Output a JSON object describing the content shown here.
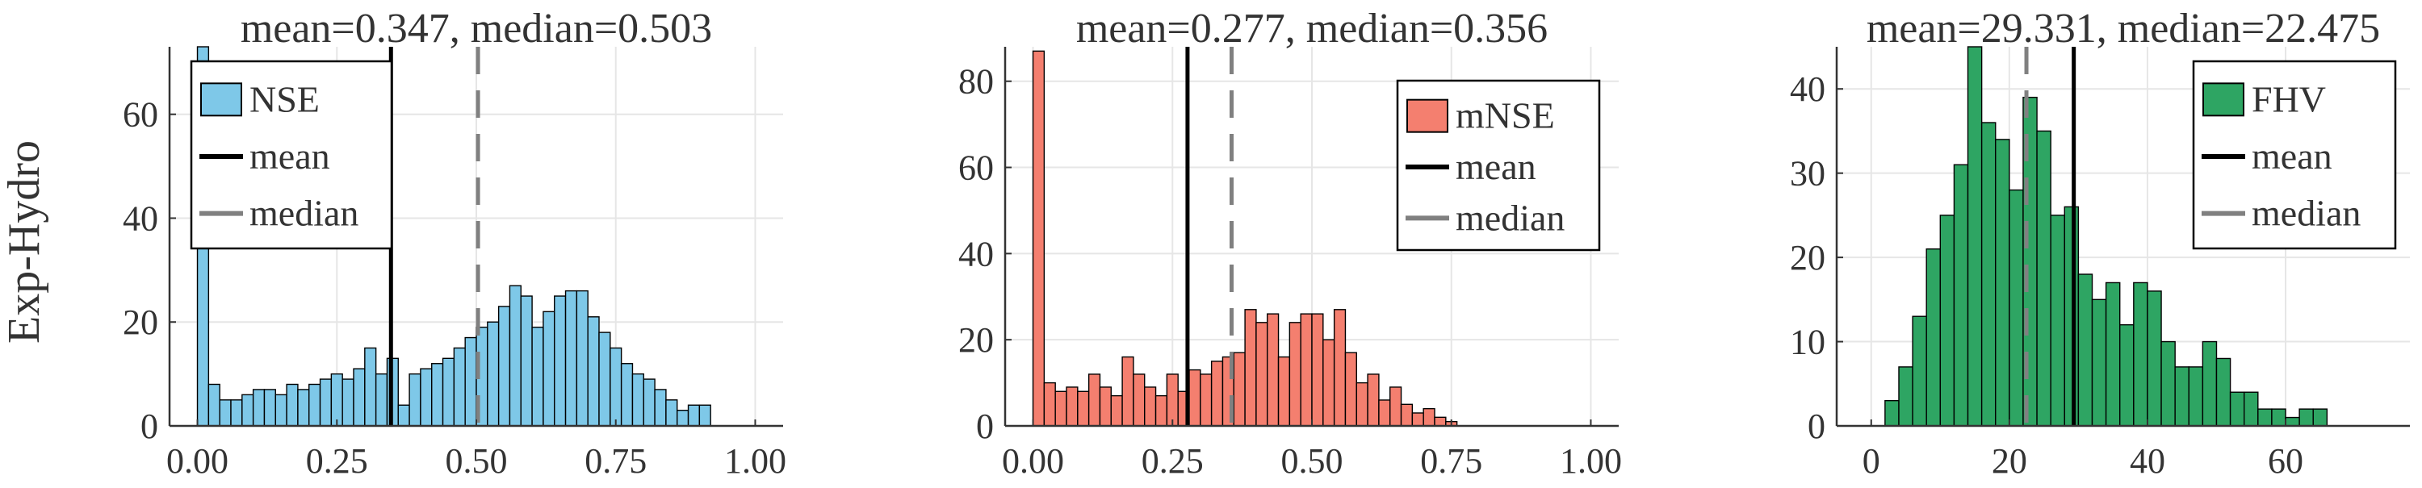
{
  "row_label": "Exp-Hydro",
  "colors": {
    "mean_line": "#000000",
    "median_line": "#808080",
    "grid": "#e6e6e6",
    "axis": "#333333",
    "bar_edge": "#000000"
  },
  "chart_data": [
    {
      "type": "bar",
      "title": "mean=0.347, median=0.503",
      "xlim": [
        -0.05,
        1.05
      ],
      "ylim": [
        0,
        73
      ],
      "xticks": [
        "0.00",
        "0.25",
        "0.50",
        "0.75",
        "1.00"
      ],
      "xtick_values": [
        0,
        0.25,
        0.5,
        0.75,
        1.0
      ],
      "yticks": [
        "0",
        "20",
        "40",
        "60"
      ],
      "ytick_values": [
        0,
        20,
        40,
        60
      ],
      "bin_start": 0.0,
      "bin_width": 0.02,
      "counts": [
        73,
        8,
        5,
        5,
        6,
        7,
        7,
        6,
        8,
        7,
        8,
        9,
        10,
        9,
        11,
        15,
        10,
        13,
        4,
        10,
        11,
        12,
        13,
        15,
        17,
        19,
        20,
        23,
        27,
        25,
        19,
        22,
        25,
        26,
        26,
        21,
        18,
        15,
        12,
        10,
        9,
        7,
        5,
        3,
        4,
        4
      ],
      "bar_color": "#7ec8e8",
      "mean": 0.347,
      "median": 0.503,
      "legend": {
        "placement": "top-left",
        "entries": [
          "NSE",
          "mean",
          "median"
        ]
      }
    },
    {
      "type": "bar",
      "title": "mean=0.277, median=0.356",
      "xlim": [
        -0.05,
        1.05
      ],
      "ylim": [
        0,
        88
      ],
      "xticks": [
        "0.00",
        "0.25",
        "0.50",
        "0.75",
        "1.00"
      ],
      "xtick_values": [
        0,
        0.25,
        0.5,
        0.75,
        1.0
      ],
      "yticks": [
        "0",
        "20",
        "40",
        "60",
        "80"
      ],
      "ytick_values": [
        0,
        20,
        40,
        60,
        80
      ],
      "bin_start": 0.0,
      "bin_width": 0.02,
      "counts": [
        87,
        10,
        8,
        9,
        8,
        12,
        9,
        7,
        16,
        12,
        9,
        7,
        12,
        8,
        13,
        12,
        15,
        16,
        17,
        27,
        24,
        26,
        16,
        24,
        26,
        26,
        20,
        27,
        17,
        10,
        12,
        6,
        9,
        5,
        3,
        4,
        2,
        1
      ],
      "bar_color": "#f47f6f",
      "mean": 0.277,
      "median": 0.356,
      "legend": {
        "placement": "top-right",
        "entries": [
          "mNSE",
          "mean",
          "median"
        ]
      }
    },
    {
      "type": "bar",
      "title": "mean=29.331, median=22.475",
      "xlim": [
        -5,
        78
      ],
      "ylim": [
        0,
        45
      ],
      "xticks": [
        "0",
        "20",
        "40",
        "60"
      ],
      "xtick_values": [
        0,
        20,
        40,
        60
      ],
      "yticks": [
        "0",
        "10",
        "20",
        "30",
        "40"
      ],
      "ytick_values": [
        0,
        10,
        20,
        30,
        40
      ],
      "bin_start": 2.0,
      "bin_width": 2.0,
      "counts": [
        3,
        7,
        13,
        21,
        25,
        31,
        45,
        36,
        34,
        28,
        39,
        35,
        25,
        26,
        18,
        15,
        17,
        12,
        17,
        16,
        10,
        7,
        7,
        10,
        8,
        4,
        4,
        2,
        2,
        1,
        2,
        2
      ],
      "bar_color": "#2ea563",
      "mean": 29.331,
      "median": 22.475,
      "legend": {
        "placement": "top-right",
        "entries": [
          "FHV",
          "mean",
          "median"
        ]
      }
    }
  ]
}
